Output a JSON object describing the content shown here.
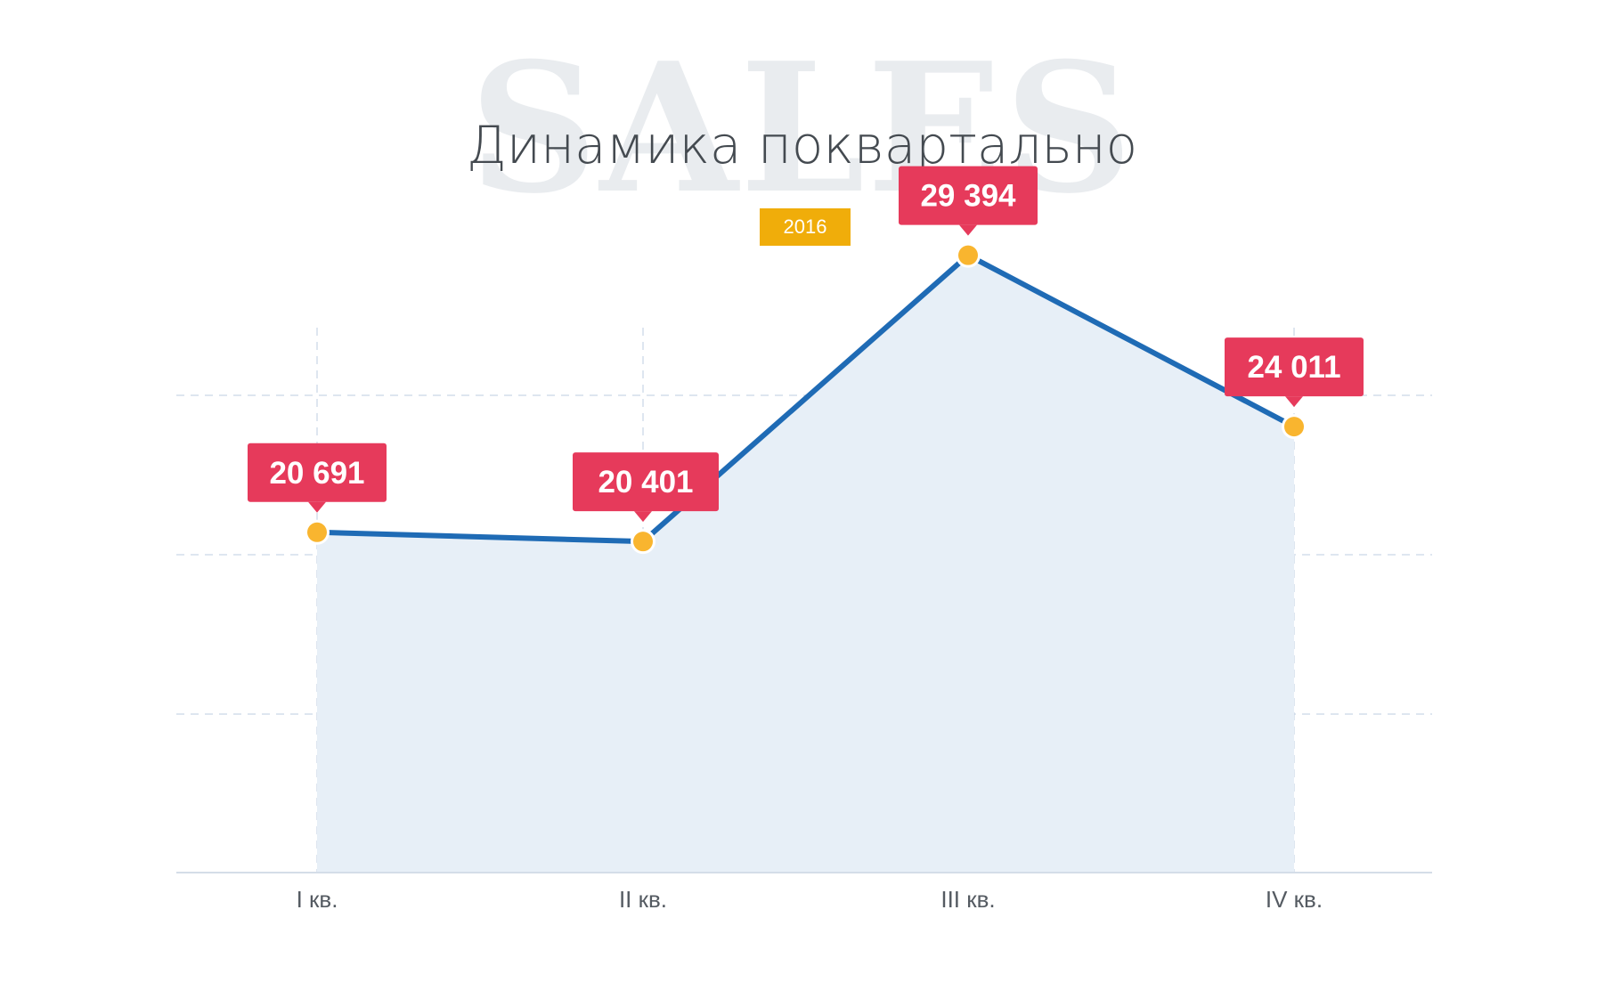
{
  "watermark": "SALES",
  "title": "Динамика поквартально",
  "badge": "2016",
  "colors": {
    "line": "#1f6bb5",
    "area": "#e7eff7",
    "point": "#f9b52f",
    "label_bg": "#e63a5b",
    "badge": "#f0ad0a",
    "grid": "#c9d6e6"
  },
  "chart_data": {
    "type": "area",
    "title": "Динамика поквартально",
    "categories": [
      "I кв.",
      "II кв.",
      "III кв.",
      "IV кв."
    ],
    "series": [
      {
        "values": [
          20691,
          20401,
          29394,
          24011
        ],
        "labels": [
          "20 691",
          "20 401",
          "29 394",
          "24 011"
        ]
      }
    ],
    "ylim": [
      10000,
      30000
    ],
    "grid": true,
    "xlabel": "",
    "ylabel": ""
  }
}
